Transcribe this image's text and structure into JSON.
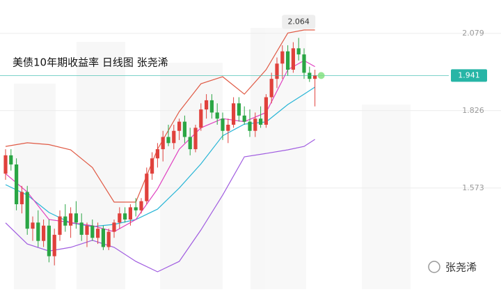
{
  "chart_data": {
    "type": "candlestick",
    "title": "美债10年期收益率  日线图  张尧浠",
    "watermark": "张尧浠",
    "ylim": [
      1.242,
      2.188
    ],
    "yticks": [
      2.079,
      1.826,
      1.573
    ],
    "grid": true,
    "up_color": "#e0413c",
    "down_color": "#2aa644",
    "current": {
      "value": 1.941,
      "label": "1.941",
      "color": "#27b5a6"
    },
    "high_annotation": {
      "value": 2.064,
      "label": "2.064",
      "index": 54
    },
    "candles": {
      "open": [
        1.62,
        1.68,
        1.65,
        1.52,
        1.56,
        1.44,
        1.46,
        1.4,
        1.45,
        1.35,
        1.42,
        1.48,
        1.45,
        1.49,
        1.46,
        1.42,
        1.45,
        1.41,
        1.44,
        1.38,
        1.43,
        1.46,
        1.49,
        1.47,
        1.51,
        1.5,
        1.53,
        1.62,
        1.67,
        1.7,
        1.74,
        1.72,
        1.76,
        1.79,
        1.74,
        1.7,
        1.77,
        1.83,
        1.86,
        1.82,
        1.8,
        1.76,
        1.78,
        1.85,
        1.81,
        1.79,
        1.76,
        1.8,
        1.78,
        1.87,
        1.93,
        1.98,
        2.02,
        1.96,
        2.03,
        2.01,
        1.95,
        1.93
      ],
      "high": [
        1.7,
        1.7,
        1.67,
        1.58,
        1.58,
        1.48,
        1.5,
        1.47,
        1.47,
        1.44,
        1.5,
        1.52,
        1.51,
        1.53,
        1.49,
        1.46,
        1.47,
        1.46,
        1.45,
        1.44,
        1.47,
        1.51,
        1.51,
        1.52,
        1.54,
        1.54,
        1.64,
        1.69,
        1.72,
        1.76,
        1.78,
        1.78,
        1.8,
        1.81,
        1.77,
        1.78,
        1.85,
        1.88,
        1.88,
        1.85,
        1.82,
        1.8,
        1.87,
        1.87,
        1.84,
        1.83,
        1.82,
        1.84,
        1.88,
        1.95,
        2.0,
        2.04,
        2.04,
        2.05,
        2.064,
        2.03,
        1.97,
        1.96
      ],
      "low": [
        1.6,
        1.63,
        1.5,
        1.49,
        1.42,
        1.4,
        1.38,
        1.38,
        1.33,
        1.32,
        1.4,
        1.43,
        1.41,
        1.44,
        1.4,
        1.38,
        1.4,
        1.39,
        1.37,
        1.37,
        1.41,
        1.44,
        1.46,
        1.45,
        1.48,
        1.49,
        1.52,
        1.6,
        1.64,
        1.66,
        1.71,
        1.7,
        1.73,
        1.72,
        1.68,
        1.69,
        1.76,
        1.8,
        1.8,
        1.78,
        1.73,
        1.72,
        1.77,
        1.79,
        1.78,
        1.74,
        1.74,
        1.77,
        1.77,
        1.85,
        1.9,
        1.93,
        1.94,
        1.95,
        1.99,
        1.93,
        1.92,
        1.84
      ],
      "close": [
        1.68,
        1.65,
        1.52,
        1.56,
        1.44,
        1.46,
        1.4,
        1.45,
        1.35,
        1.42,
        1.48,
        1.45,
        1.49,
        1.46,
        1.42,
        1.45,
        1.41,
        1.44,
        1.38,
        1.43,
        1.46,
        1.49,
        1.47,
        1.51,
        1.5,
        1.53,
        1.62,
        1.67,
        1.7,
        1.74,
        1.72,
        1.76,
        1.79,
        1.74,
        1.7,
        1.77,
        1.83,
        1.86,
        1.82,
        1.8,
        1.76,
        1.78,
        1.85,
        1.81,
        1.79,
        1.76,
        1.8,
        1.78,
        1.87,
        1.93,
        1.98,
        2.02,
        1.96,
        2.03,
        2.01,
        1.95,
        1.93,
        1.941
      ]
    },
    "series": [
      {
        "name": "upper",
        "color": "#e05a45",
        "x": [
          0,
          4,
          8,
          12,
          16,
          20,
          24,
          28,
          32,
          36,
          40,
          44,
          48,
          52,
          55,
          57
        ],
        "values": [
          1.709,
          1.721,
          1.715,
          1.698,
          1.64,
          1.527,
          1.527,
          1.7,
          1.823,
          1.914,
          1.937,
          1.88,
          1.96,
          2.08,
          2.09,
          2.09
        ]
      },
      {
        "name": "lower",
        "color": "#a05ce0",
        "x": [
          0,
          4,
          8,
          12,
          16,
          20,
          24,
          28,
          32,
          36,
          40,
          44,
          48,
          52,
          55,
          57
        ],
        "values": [
          1.459,
          1.39,
          1.367,
          1.379,
          1.402,
          1.379,
          1.333,
          1.299,
          1.333,
          1.436,
          1.55,
          1.675,
          1.686,
          1.698,
          1.709,
          1.732
        ]
      },
      {
        "name": "middle",
        "color": "#27b5d6",
        "x": [
          0,
          4,
          8,
          12,
          16,
          20,
          24,
          28,
          32,
          36,
          40,
          44,
          48,
          52,
          55,
          57
        ],
        "values": [
          1.584,
          1.55,
          1.493,
          1.459,
          1.447,
          1.454,
          1.47,
          1.504,
          1.573,
          1.652,
          1.744,
          1.782,
          1.789,
          1.846,
          1.88,
          1.903
        ]
      },
      {
        "name": "ma",
        "color": "#e040c0",
        "x": [
          0,
          4,
          8,
          12,
          16,
          20,
          24,
          28,
          32,
          36,
          40,
          44,
          48,
          52,
          55,
          57
        ],
        "values": [
          1.62,
          1.56,
          1.47,
          1.46,
          1.45,
          1.43,
          1.47,
          1.57,
          1.7,
          1.77,
          1.8,
          1.79,
          1.82,
          1.96,
          1.99,
          1.97
        ]
      }
    ]
  }
}
